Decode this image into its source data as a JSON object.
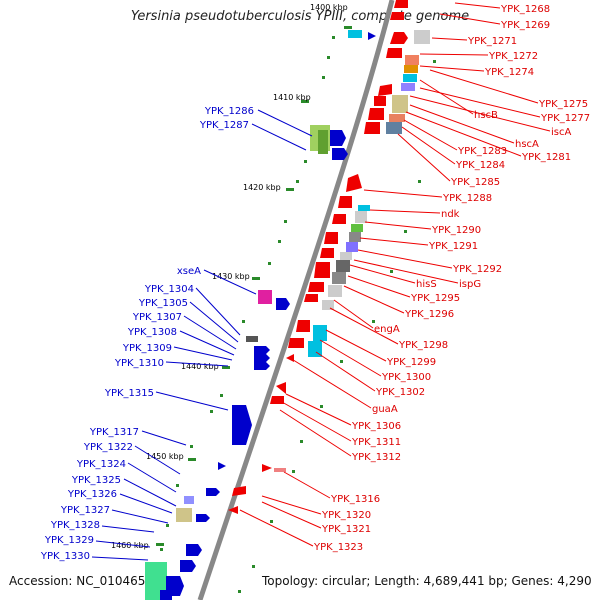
{
  "title": "Yersinia pseudotuberculosis YPIII, complete genome",
  "accession": "Accession: NC_010465",
  "topology": "Topology: circular; Length: 4,689,441 bp; Genes: 4,290",
  "kbp_labels": [
    "1400 kbp",
    "1410 kbp",
    "1420 kbp",
    "1430 kbp",
    "1440 kbp",
    "1450 kbp",
    "1460 kbp"
  ],
  "left_genes": [
    "YPK_1286",
    "YPK_1287",
    "xseA",
    "YPK_1304",
    "YPK_1305",
    "YPK_1307",
    "YPK_1308",
    "YPK_1309",
    "YPK_1310",
    "YPK_1315",
    "YPK_1317",
    "YPK_1322",
    "YPK_1324",
    "YPK_1325",
    "YPK_1326",
    "YPK_1327",
    "YPK_1328",
    "YPK_1329",
    "YPK_1330"
  ],
  "right_genes": [
    "YPK_1268",
    "YPK_1269",
    "YPK_1271",
    "YPK_1272",
    "YPK_1274",
    "YPK_1275",
    "hscB",
    "YPK_1277",
    "iscA",
    "hscA",
    "YPK_1281",
    "YPK_1283",
    "YPK_1284",
    "YPK_1285",
    "YPK_1288",
    "ndk",
    "YPK_1290",
    "YPK_1291",
    "YPK_1292",
    "hisS",
    "ispG",
    "YPK_1295",
    "YPK_1296",
    "engA",
    "YPK_1298",
    "YPK_1299",
    "YPK_1300",
    "YPK_1302",
    "guaA",
    "YPK_1306",
    "YPK_1311",
    "YPK_1312",
    "YPK_1316",
    "YPK_1320",
    "YPK_1321",
    "YPK_1323"
  ]
}
